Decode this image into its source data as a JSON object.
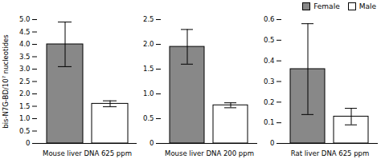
{
  "chart_data": [
    {
      "type": "bar",
      "categories": [
        "Mouse liver DNA 625 ppm"
      ],
      "ylabel": "bis-N7G-BD/10⁷ nucleotides",
      "series": [
        {
          "name": "Female",
          "color": "#888888",
          "values": [
            4.0
          ],
          "errors": [
            0.9
          ]
        },
        {
          "name": "Male",
          "color": "#ffffff",
          "values": [
            1.6
          ],
          "errors": [
            0.12
          ]
        }
      ],
      "ylim": [
        0,
        5.0
      ],
      "yticks": [
        0,
        0.5,
        {
          "value": 1.0,
          "label": "1.0"
        },
        1.5,
        {
          "value": 2.0,
          "label": "2.0"
        },
        2.5,
        {
          "value": 3.0,
          "label": "3.0"
        },
        3.5,
        {
          "value": 4.0,
          "label": "4.0"
        },
        4.5,
        {
          "value": 5.0,
          "label": "5.0"
        }
      ]
    },
    {
      "type": "bar",
      "categories": [
        "Mouse liver DNA 200 ppm"
      ],
      "series": [
        {
          "name": "Female",
          "color": "#888888",
          "values": [
            1.95
          ],
          "errors": [
            0.35
          ]
        },
        {
          "name": "Male",
          "color": "#ffffff",
          "values": [
            0.77
          ],
          "errors": [
            0.05
          ]
        }
      ],
      "ylim": [
        0,
        2.5
      ],
      "yticks": [
        0,
        0.5,
        {
          "value": 1.0,
          "label": "1.0"
        },
        1.5,
        {
          "value": 2.0,
          "label": "2.0"
        },
        2.5
      ]
    },
    {
      "type": "bar",
      "categories": [
        "Rat liver DNA 625 ppm"
      ],
      "series": [
        {
          "name": "Female",
          "color": "#888888",
          "values": [
            0.36
          ],
          "errors": [
            0.22
          ]
        },
        {
          "name": "Male",
          "color": "#ffffff",
          "values": [
            0.13
          ],
          "errors": [
            0.04
          ]
        }
      ],
      "ylim": [
        0,
        0.6
      ],
      "yticks": [
        0,
        0.1,
        0.2,
        0.3,
        0.4,
        0.5,
        0.6
      ],
      "legend": "upper right"
    }
  ]
}
